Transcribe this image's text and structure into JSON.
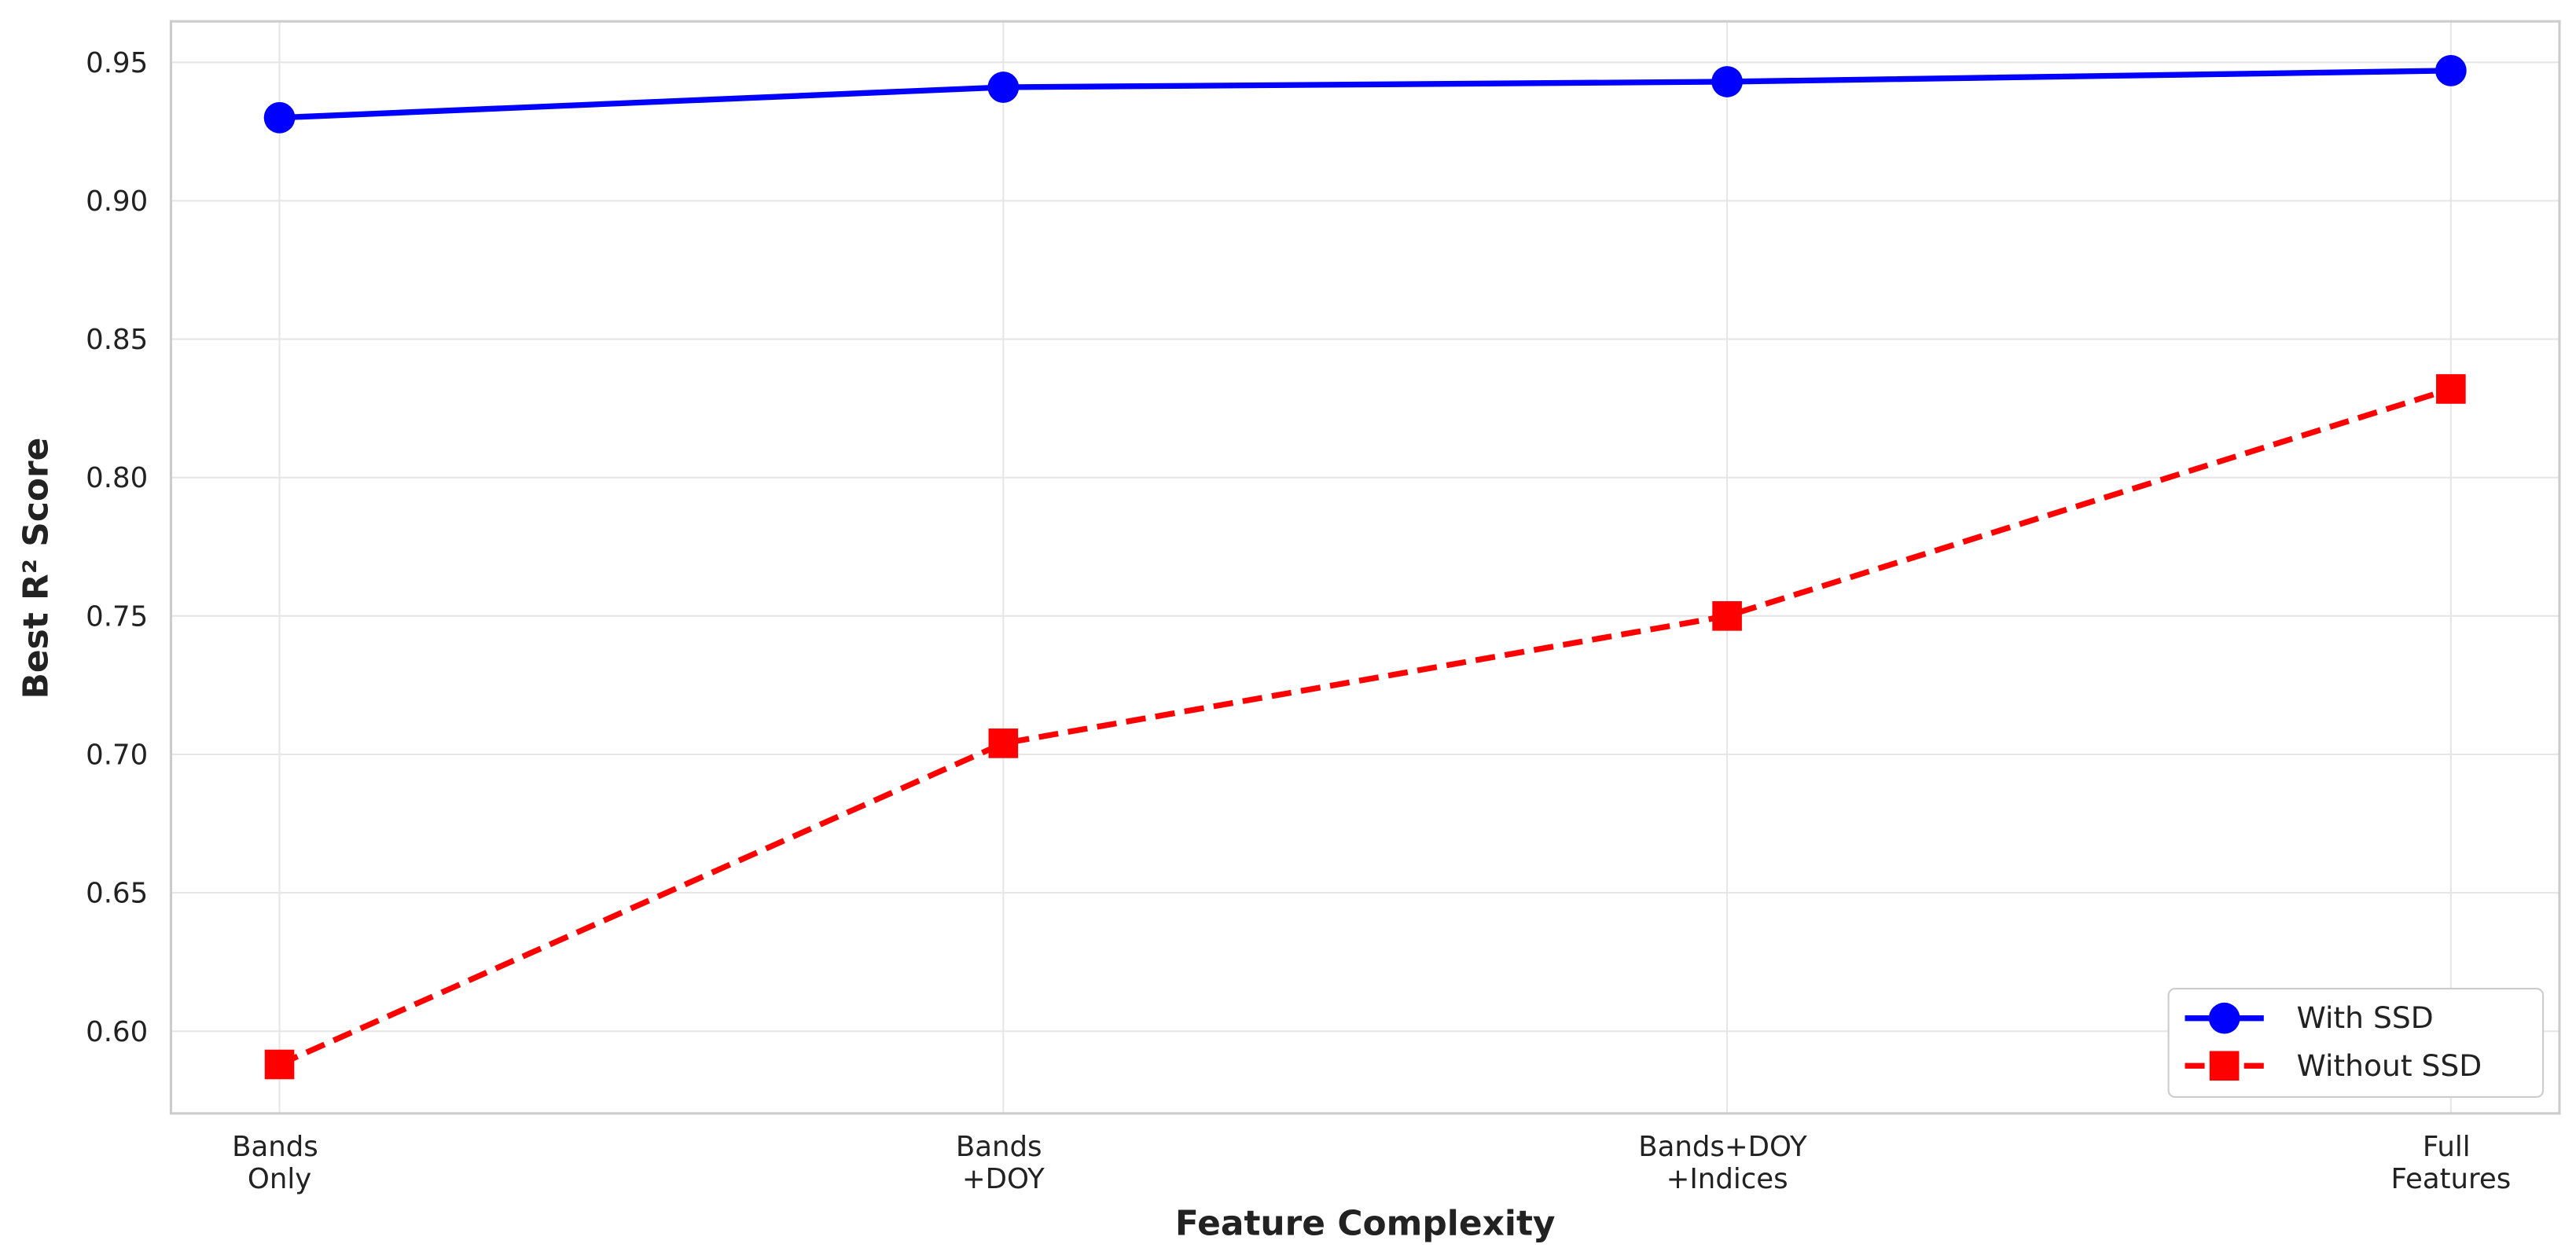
{
  "chart_data": {
    "type": "line",
    "xlabel": "Feature Complexity",
    "ylabel": "Best R² Score",
    "categories": [
      "Bands\nOnly",
      "Bands\n+DOY",
      "Bands+DOY\n+Indices",
      "Full\nFeatures"
    ],
    "series": [
      {
        "name": "With SSD",
        "color": "#0000ff",
        "marker": "circle",
        "linestyle": "solid",
        "values": [
          0.93,
          0.941,
          0.943,
          0.947
        ]
      },
      {
        "name": "Without SSD",
        "color": "#ff0000",
        "marker": "square",
        "linestyle": "dashed",
        "values": [
          0.588,
          0.704,
          0.75,
          0.832
        ]
      }
    ],
    "ylim": [
      0.5703,
      0.9648
    ],
    "yticks": [
      {
        "value": 0.6,
        "label": "0.60"
      },
      {
        "value": 0.65,
        "label": "0.65"
      },
      {
        "value": 0.7,
        "label": "0.70"
      },
      {
        "value": 0.75,
        "label": "0.75"
      },
      {
        "value": 0.8,
        "label": "0.80"
      },
      {
        "value": 0.85,
        "label": "0.85"
      },
      {
        "value": 0.9,
        "label": "0.90"
      },
      {
        "value": 0.95,
        "label": "0.95"
      }
    ],
    "grid": true,
    "legend": "lower right"
  }
}
